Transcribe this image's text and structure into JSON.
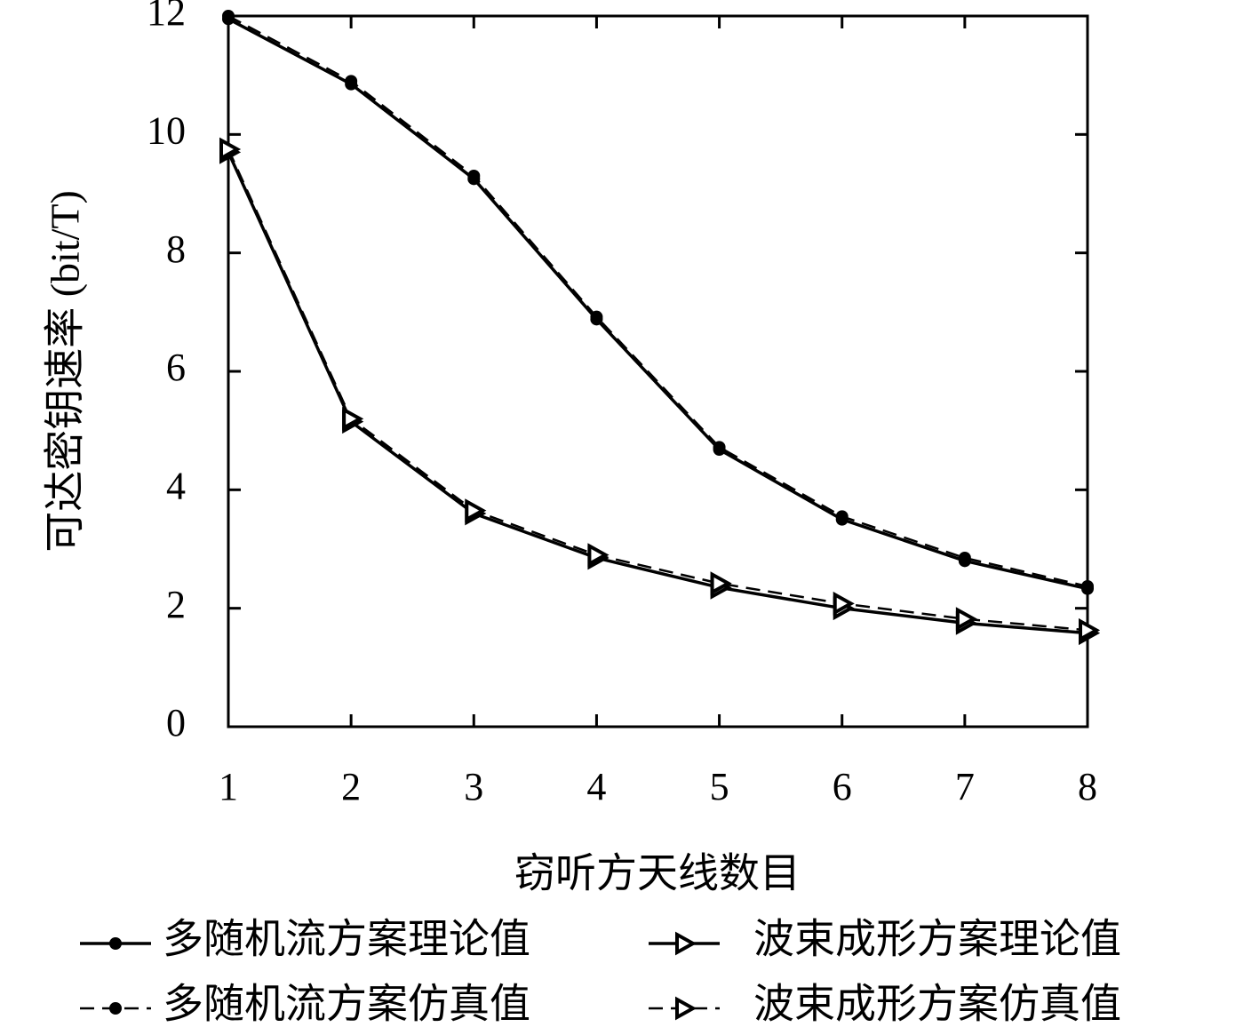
{
  "chart_data": {
    "type": "line",
    "x_label": "窃听方天线数目",
    "y_label": "可达密钥速率 (bit/T)",
    "x": [
      1,
      2,
      3,
      4,
      5,
      6,
      7,
      8
    ],
    "xlim": [
      1,
      8
    ],
    "xticks": [
      1,
      2,
      3,
      4,
      5,
      6,
      7,
      8
    ],
    "ylim": [
      0,
      12
    ],
    "yticks": [
      0,
      2,
      4,
      6,
      8,
      10,
      12
    ],
    "series": [
      {
        "name": "多随机流方案理论值",
        "color": "#000000",
        "dash": false,
        "marker": "circle",
        "values": [
          11.95,
          10.85,
          9.25,
          6.88,
          4.68,
          3.5,
          2.8,
          2.33
        ]
      },
      {
        "name": "波束成形方案理论值",
        "color": "#000000",
        "dash": false,
        "marker": "triangle",
        "values": [
          9.7,
          5.15,
          3.6,
          2.85,
          2.35,
          2.0,
          1.75,
          1.58
        ]
      },
      {
        "name": "多随机流方案仿真值",
        "color": "#000000",
        "dash": true,
        "marker": "circle",
        "values": [
          12.0,
          10.9,
          9.3,
          6.92,
          4.72,
          3.55,
          2.85,
          2.37
        ]
      },
      {
        "name": "波束成形方案仿真值",
        "color": "#000000",
        "dash": true,
        "marker": "triangle",
        "values": [
          9.75,
          5.2,
          3.65,
          2.9,
          2.42,
          2.08,
          1.82,
          1.63
        ]
      }
    ]
  }
}
